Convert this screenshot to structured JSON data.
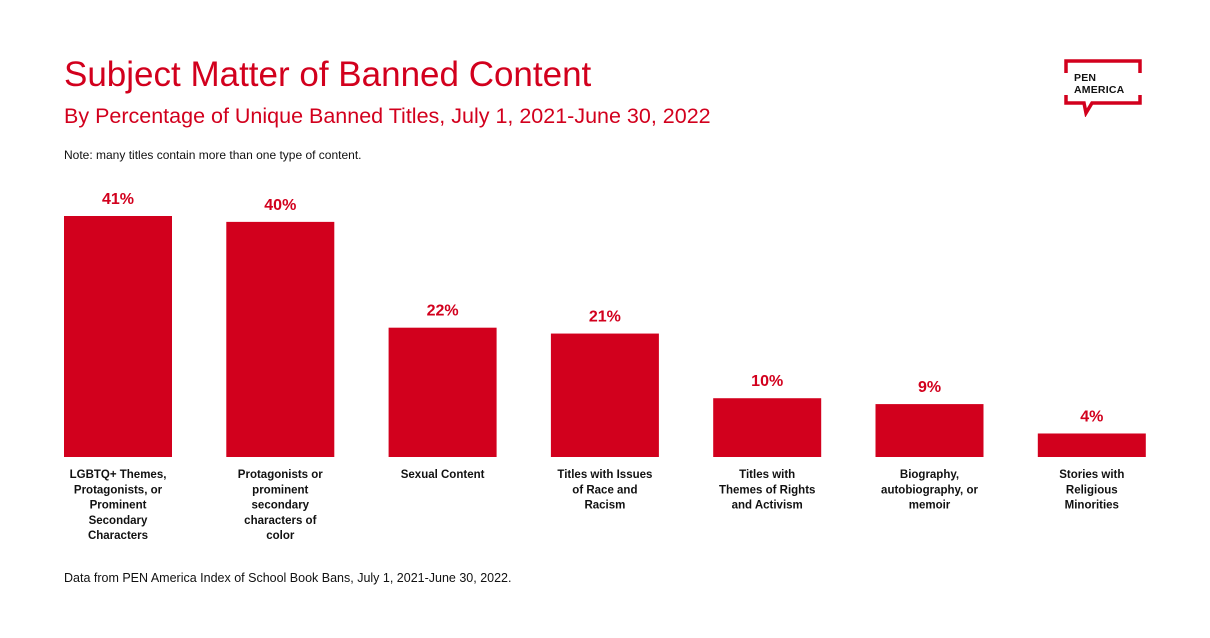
{
  "header": {
    "title": "Subject Matter of Banned Content",
    "subtitle": "By Percentage of Unique Banned Titles, July 1, 2021-June 30, 2022",
    "note": "Note: many titles contain more than one type of content."
  },
  "logo": {
    "line1": "PEN",
    "line2": "AMERICA",
    "accent_color": "#d2001d"
  },
  "footer": {
    "source": "Data from PEN America Index of School Book Bans, July 1, 2021-June 30, 2022."
  },
  "colors": {
    "bar": "#d2001d",
    "value_label": "#d2001d",
    "category_label": "#111111"
  },
  "chart_data": {
    "type": "bar",
    "title": "Subject Matter of Banned Content",
    "subtitle": "By Percentage of Unique Banned Titles, July 1, 2021-June 30, 2022",
    "categories": [
      [
        "LGBTQ+ Themes,",
        "Protagonists, or",
        "Prominent",
        "Secondary",
        "Characters"
      ],
      [
        "Protagonists or",
        "prominent",
        "secondary",
        "characters of",
        "color"
      ],
      [
        "Sexual Content"
      ],
      [
        "Titles with Issues",
        "of Race and",
        "Racism"
      ],
      [
        "Titles with",
        "Themes of Rights",
        "and Activism"
      ],
      [
        "Biography,",
        "autobiography, or",
        "memoir"
      ],
      [
        "Stories with",
        "Religious",
        "Minorities"
      ]
    ],
    "values": [
      41,
      40,
      22,
      21,
      10,
      9,
      4
    ],
    "value_labels": [
      "41%",
      "40%",
      "22%",
      "21%",
      "10%",
      "9%",
      "4%"
    ],
    "unit": "%",
    "ylim": [
      0,
      41
    ],
    "grid": false,
    "legend": "none"
  }
}
